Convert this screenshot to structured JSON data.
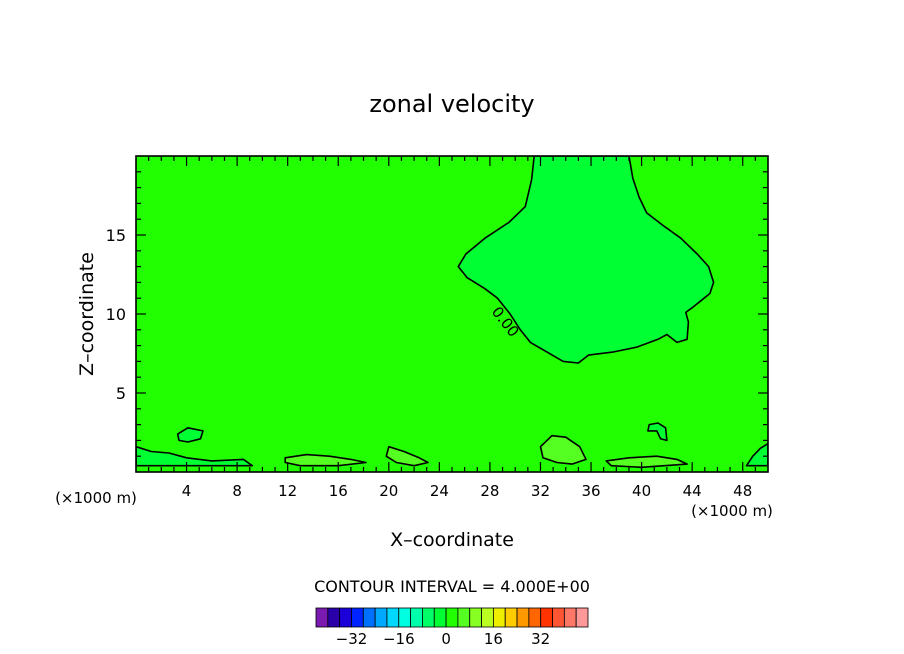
{
  "chart_data": {
    "type": "heatmap",
    "title": "zonal velocity",
    "xlabel": "X–coordinate",
    "ylabel": "Z–coordinate",
    "x_unit_left": "(×1000 m)",
    "x_unit_right": "(×1000 m)",
    "xlim": [
      0,
      50
    ],
    "ylim": [
      0,
      20
    ],
    "x_ticks": [
      4,
      8,
      12,
      16,
      20,
      24,
      28,
      32,
      36,
      40,
      44,
      48
    ],
    "y_ticks": [
      5,
      10,
      15
    ],
    "contour_label": "0.00",
    "contour_interval_text": "CONTOUR INTERVAL = 4.000E+00",
    "background_color": "#22ff00",
    "regions": [
      {
        "value_band": "0 to 4",
        "color": "#00ff33",
        "outline_xy": [
          [
            31.5,
            20
          ],
          [
            31.3,
            18.5
          ],
          [
            30.8,
            16.8
          ],
          [
            29.5,
            15.8
          ],
          [
            27.6,
            14.8
          ],
          [
            26.1,
            13.8
          ],
          [
            25.5,
            13.0
          ],
          [
            26.2,
            12.3
          ],
          [
            27.6,
            11.6
          ],
          [
            28.6,
            11.0
          ],
          [
            29.6,
            10.0
          ],
          [
            30.4,
            9.0
          ],
          [
            31.2,
            8.2
          ],
          [
            32.5,
            7.6
          ],
          [
            33.8,
            7.0
          ],
          [
            35.0,
            6.9
          ],
          [
            35.8,
            7.4
          ],
          [
            37.8,
            7.6
          ],
          [
            39.6,
            7.9
          ],
          [
            41.3,
            8.4
          ],
          [
            42.0,
            8.7
          ],
          [
            42.8,
            8.2
          ],
          [
            43.6,
            8.4
          ],
          [
            43.7,
            9.5
          ],
          [
            43.5,
            10.1
          ],
          [
            44.0,
            10.4
          ],
          [
            45.4,
            11.3
          ],
          [
            45.7,
            12.0
          ],
          [
            45.3,
            13.0
          ],
          [
            44.4,
            13.8
          ],
          [
            43.1,
            14.8
          ],
          [
            41.7,
            15.6
          ],
          [
            40.4,
            16.4
          ],
          [
            39.8,
            17.4
          ],
          [
            39.3,
            18.6
          ],
          [
            39.0,
            20.0
          ]
        ]
      },
      {
        "value_band": "4 to 8",
        "color": "#55ff22",
        "outline_xy": [
          [
            32.0,
            1.6
          ],
          [
            32.9,
            2.3
          ],
          [
            34.0,
            2.2
          ],
          [
            35.1,
            1.6
          ],
          [
            35.6,
            0.8
          ],
          [
            34.5,
            0.5
          ],
          [
            33.3,
            0.6
          ],
          [
            32.2,
            0.9
          ]
        ]
      },
      {
        "value_band": "4 to 8",
        "color": "#55ff22",
        "outline_xy": [
          [
            20.0,
            1.6
          ],
          [
            21.2,
            1.3
          ],
          [
            22.4,
            0.9
          ],
          [
            23.1,
            0.6
          ],
          [
            22.0,
            0.4
          ],
          [
            20.6,
            0.6
          ],
          [
            19.8,
            1.0
          ]
        ]
      },
      {
        "value_band": "0 to 4",
        "color": "#00ff33",
        "outline_xy": [
          [
            0.0,
            1.6
          ],
          [
            1.2,
            1.3
          ],
          [
            2.6,
            1.2
          ],
          [
            4.0,
            0.9
          ],
          [
            6.0,
            0.7
          ],
          [
            8.5,
            0.8
          ],
          [
            9.2,
            0.4
          ],
          [
            0.0,
            0.4
          ]
        ]
      },
      {
        "value_band": "0 to 4",
        "color": "#00ff33",
        "outline_xy": [
          [
            48.3,
            0.4
          ],
          [
            48.8,
            1.0
          ],
          [
            49.4,
            1.5
          ],
          [
            50.0,
            1.8
          ],
          [
            50.0,
            0.4
          ]
        ]
      },
      {
        "value_band": "4 to 8",
        "color": "#55ff22",
        "outline_xy": [
          [
            11.8,
            0.9
          ],
          [
            13.5,
            1.1
          ],
          [
            15.3,
            1.0
          ],
          [
            17.0,
            0.8
          ],
          [
            18.2,
            0.6
          ],
          [
            16.0,
            0.4
          ],
          [
            13.0,
            0.4
          ],
          [
            11.8,
            0.6
          ]
        ]
      },
      {
        "value_band": "4 to 8",
        "color": "#55ff22",
        "outline_xy": [
          [
            37.2,
            0.7
          ],
          [
            39.0,
            0.9
          ],
          [
            41.2,
            1.0
          ],
          [
            42.8,
            0.8
          ],
          [
            43.6,
            0.5
          ],
          [
            40.0,
            0.3
          ],
          [
            37.6,
            0.4
          ]
        ]
      },
      {
        "value_band": "0 to 4",
        "color": "#00ff33",
        "outline_xy": [
          [
            3.3,
            2.4
          ],
          [
            4.1,
            2.8
          ],
          [
            5.3,
            2.6
          ],
          [
            5.1,
            2.1
          ],
          [
            4.1,
            1.9
          ],
          [
            3.4,
            2.0
          ]
        ]
      },
      {
        "value_band": "0 to 4",
        "color": "#00ff33",
        "outline_xy": [
          [
            40.6,
            3.0
          ],
          [
            41.3,
            3.1
          ],
          [
            41.9,
            2.8
          ],
          [
            42.0,
            2.0
          ],
          [
            41.5,
            2.1
          ],
          [
            41.2,
            2.6
          ],
          [
            40.5,
            2.6
          ]
        ]
      }
    ],
    "colorbar": {
      "colors": [
        "#7a1ab0",
        "#2a00a8",
        "#1c00d8",
        "#0024ff",
        "#0070ff",
        "#00a8ff",
        "#00d8ff",
        "#00ffe0",
        "#00ffaa",
        "#00ff66",
        "#00ff33",
        "#22ff00",
        "#55ff22",
        "#88ff22",
        "#bbff22",
        "#eeee00",
        "#ffcc00",
        "#ff9900",
        "#ff6600",
        "#ff3300",
        "#ff5533",
        "#ff7766",
        "#ff9999"
      ],
      "ticks": [
        -32,
        -16,
        0,
        16,
        32
      ],
      "tick_labels": [
        "−32",
        "−16",
        "0",
        "16",
        "32"
      ]
    }
  }
}
